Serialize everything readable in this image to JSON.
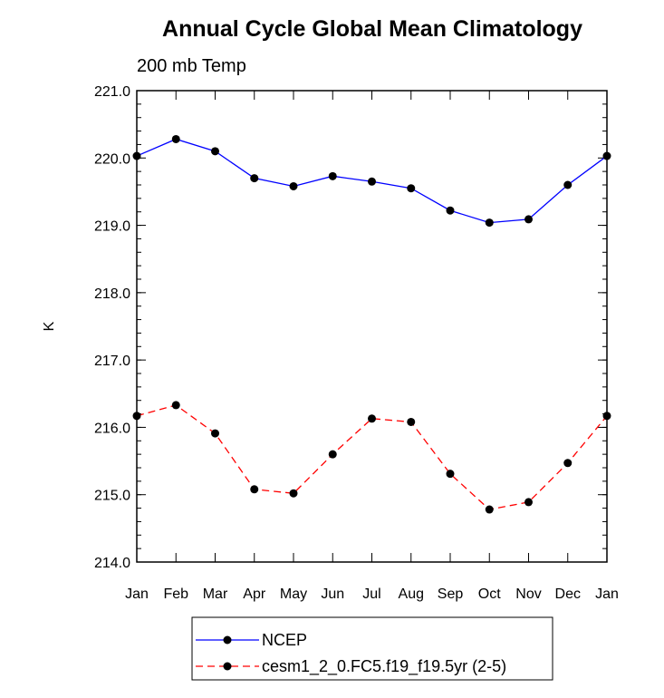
{
  "chart_data": {
    "type": "line",
    "title": "Annual Cycle Global Mean Climatology",
    "subtitle": "200 mb Temp",
    "xlabel": "",
    "ylabel": "K",
    "categories": [
      "Jan",
      "Feb",
      "Mar",
      "Apr",
      "May",
      "Jun",
      "Jul",
      "Aug",
      "Sep",
      "Oct",
      "Nov",
      "Dec",
      "Jan"
    ],
    "ylim": [
      214.0,
      221.0
    ],
    "yticks": [
      "214.0",
      "215.0",
      "216.0",
      "217.0",
      "218.0",
      "219.0",
      "220.0",
      "221.0"
    ],
    "grid": false,
    "legend_position": "bottom",
    "series": [
      {
        "name": "NCEP",
        "color": "#0000ff",
        "dash": "solid",
        "values": [
          220.03,
          220.28,
          220.1,
          219.7,
          219.58,
          219.73,
          219.65,
          219.55,
          219.22,
          219.04,
          219.09,
          219.6,
          220.03
        ]
      },
      {
        "name": "cesm1_2_0.FC5.f19_f19.5yr (2-5)",
        "color": "#ff0000",
        "dash": "dashed",
        "values": [
          216.17,
          216.33,
          215.91,
          215.08,
          215.02,
          215.6,
          216.13,
          216.08,
          215.31,
          214.78,
          214.89,
          215.47,
          216.17
        ]
      }
    ]
  }
}
